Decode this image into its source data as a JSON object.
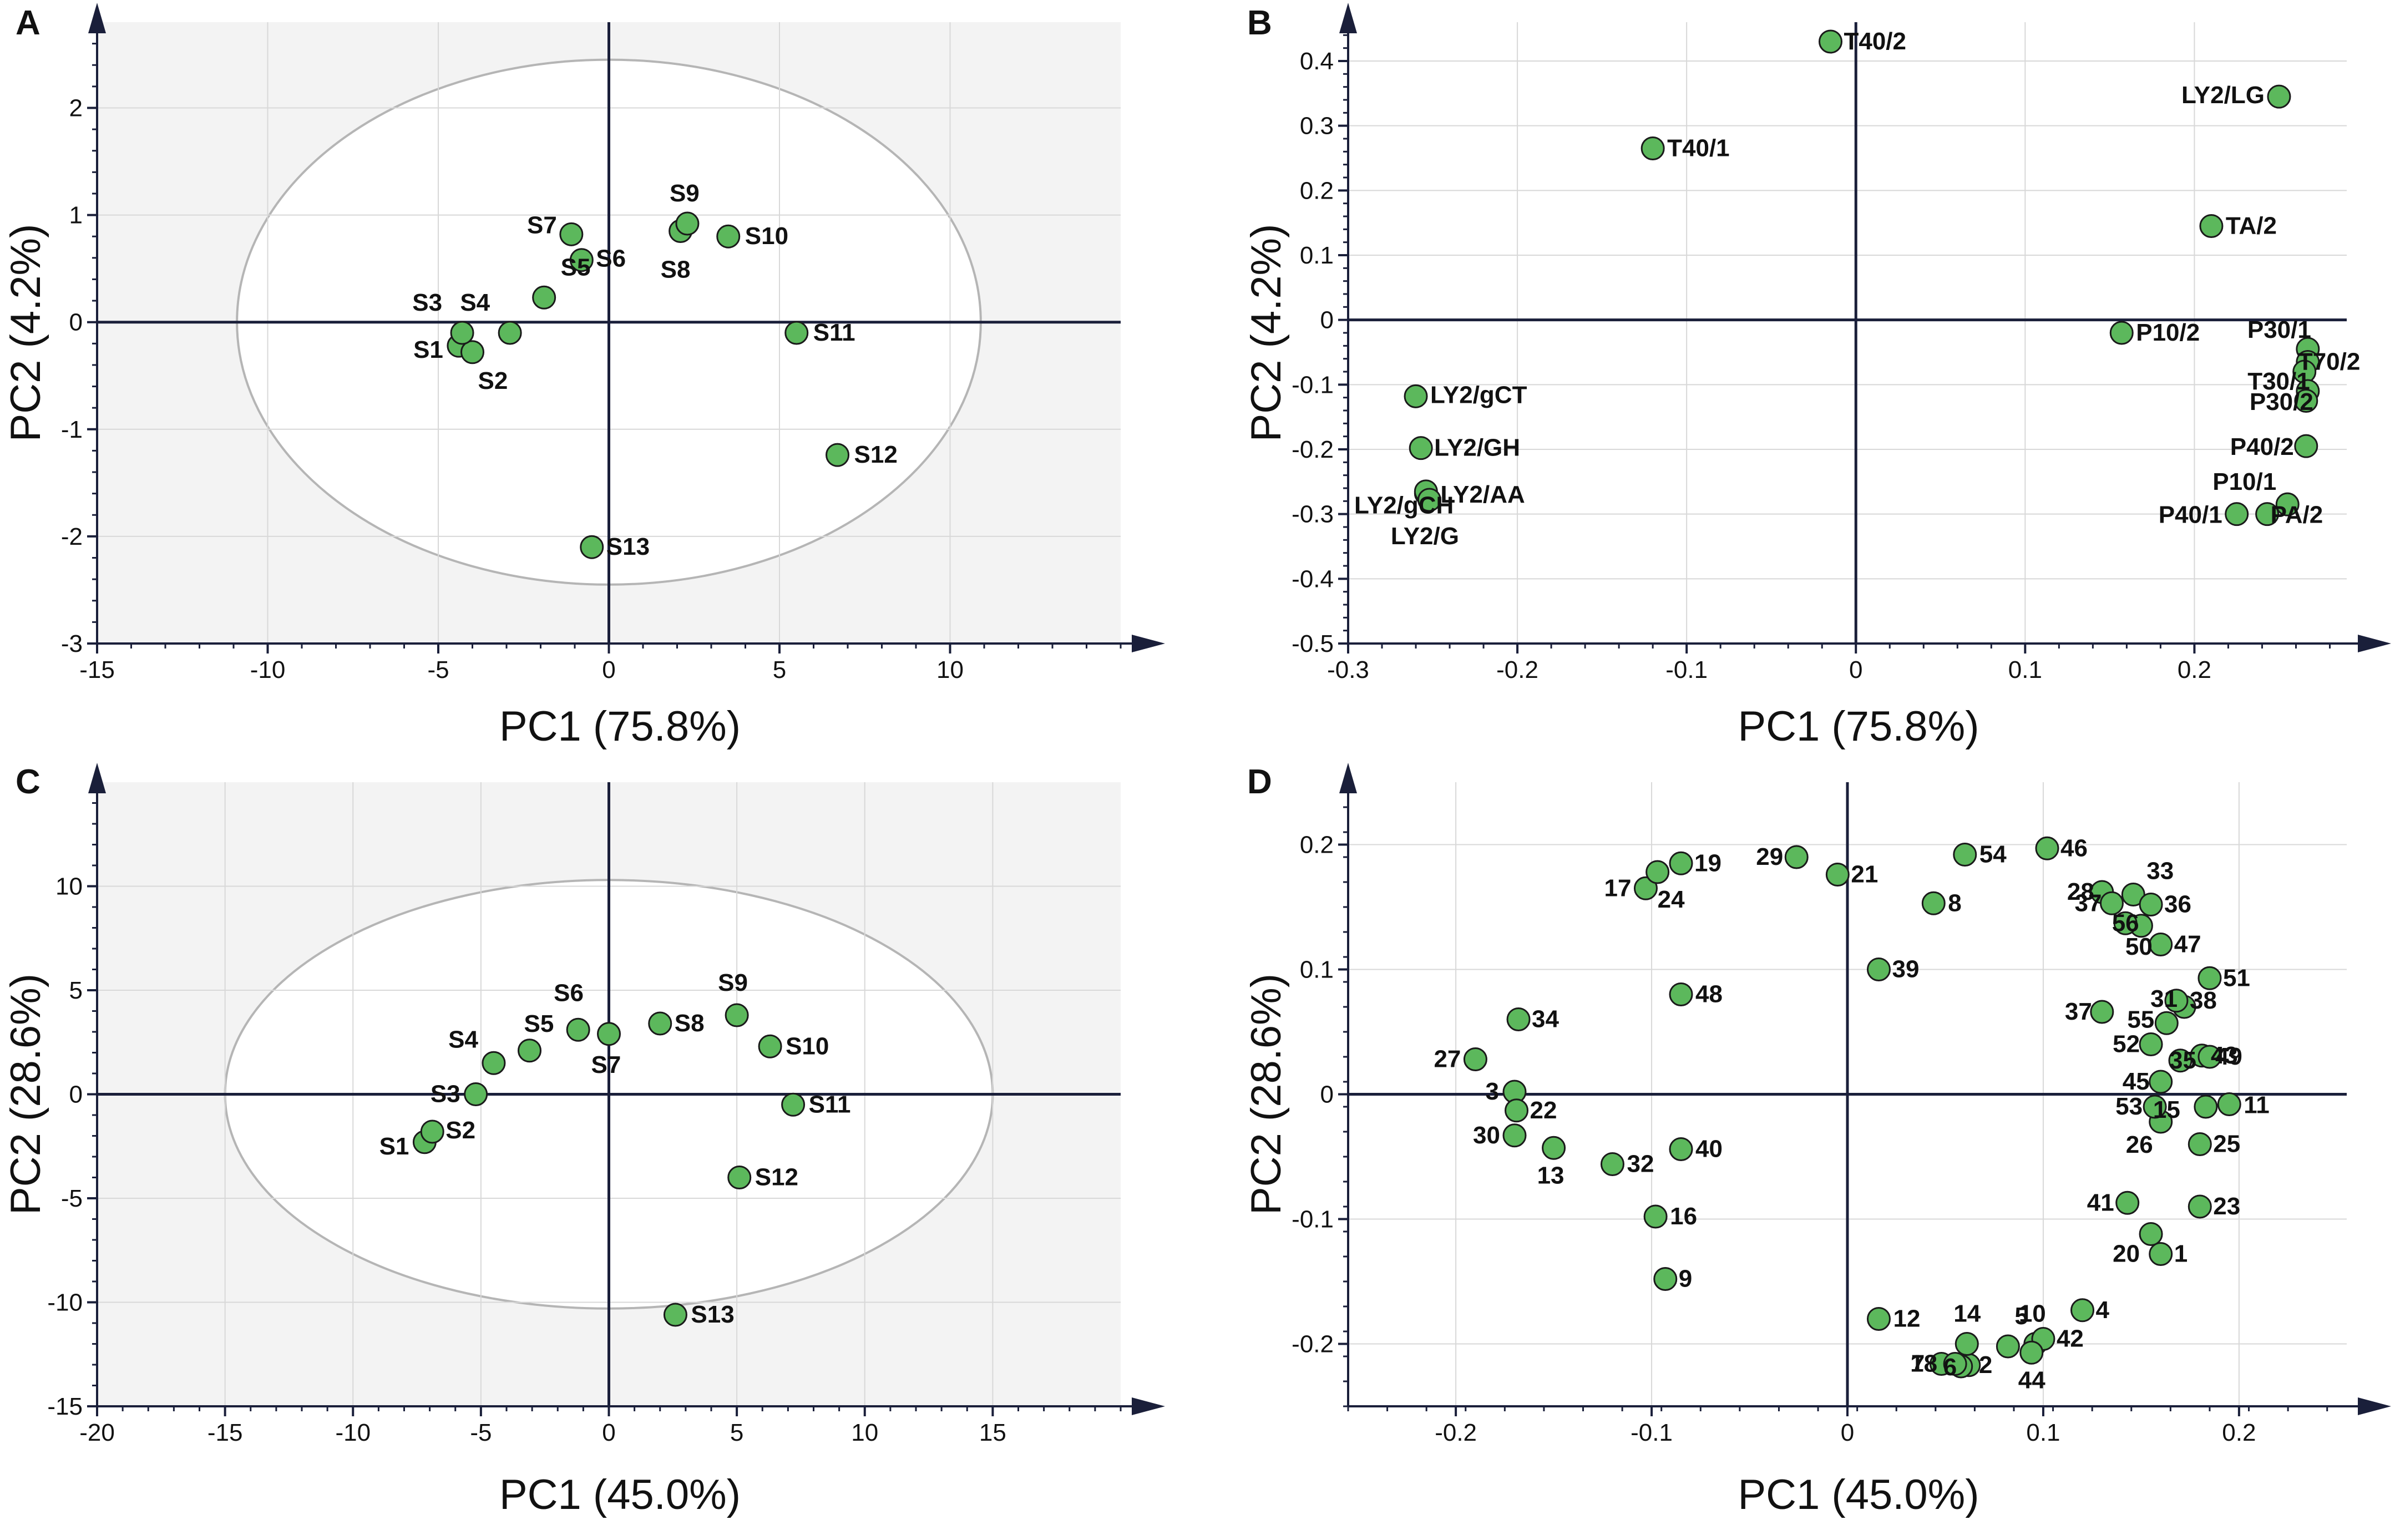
{
  "figure": {
    "panels": [
      "A",
      "B",
      "C",
      "D"
    ]
  },
  "chart_data": [
    {
      "panel": "A",
      "type": "scatter",
      "title": "",
      "xlabel": "PC1 (75.8%)",
      "ylabel": "PC2 (4.2%)",
      "xlim": [
        -15,
        15
      ],
      "ylim": [
        -3,
        2.8
      ],
      "xticks": [
        -15,
        -10,
        -5,
        0,
        5,
        10
      ],
      "yticks": [
        -3,
        -2,
        -1,
        0,
        1,
        2
      ],
      "grid": true,
      "shaded_background": true,
      "ellipse": {
        "cx": 0,
        "cy": 0,
        "rx": 10.9,
        "ry": 2.45
      },
      "points": [
        {
          "label": "S1",
          "x": -4.4,
          "y": -0.22
        },
        {
          "label": "S2",
          "x": -4.0,
          "y": -0.28
        },
        {
          "label": "S3",
          "x": -4.3,
          "y": -0.1
        },
        {
          "label": "S4",
          "x": -2.9,
          "y": -0.1
        },
        {
          "label": "S5",
          "x": -1.9,
          "y": 0.23
        },
        {
          "label": "S6",
          "x": -0.8,
          "y": 0.58
        },
        {
          "label": "S7",
          "x": -1.1,
          "y": 0.82
        },
        {
          "label": "S8",
          "x": 2.1,
          "y": 0.85
        },
        {
          "label": "S9",
          "x": 2.3,
          "y": 0.92
        },
        {
          "label": "S10",
          "x": 3.5,
          "y": 0.8
        },
        {
          "label": "S11",
          "x": 5.5,
          "y": -0.1
        },
        {
          "label": "S12",
          "x": 6.7,
          "y": -1.24
        },
        {
          "label": "S13",
          "x": -0.5,
          "y": -2.1
        }
      ]
    },
    {
      "panel": "B",
      "type": "scatter",
      "title": "",
      "xlabel": "PC1 (75.8%)",
      "ylabel": "PC2 (4.2%)",
      "xlim": [
        -0.3,
        0.29
      ],
      "ylim": [
        -0.5,
        0.46
      ],
      "xticks": [
        -0.3,
        -0.2,
        -0.1,
        0,
        0.1,
        0.2
      ],
      "yticks": [
        -0.5,
        -0.4,
        -0.3,
        -0.2,
        -0.1,
        0,
        0.1,
        0.2,
        0.3,
        0.4
      ],
      "grid": true,
      "shaded_background": false,
      "points": [
        {
          "label": "T40/2",
          "x": -0.015,
          "y": 0.43
        },
        {
          "label": "T40/1",
          "x": -0.12,
          "y": 0.265
        },
        {
          "label": "LY2/LG",
          "x": 0.25,
          "y": 0.345
        },
        {
          "label": "TA/2",
          "x": 0.21,
          "y": 0.145
        },
        {
          "label": "P10/2",
          "x": 0.157,
          "y": -0.02
        },
        {
          "label": "P30/1",
          "x": 0.267,
          "y": -0.045
        },
        {
          "label": "T70/2",
          "x": 0.267,
          "y": -0.065
        },
        {
          "label": "T30/1",
          "x": 0.265,
          "y": -0.08
        },
        {
          "label": "P30/2",
          "x": 0.267,
          "y": -0.11
        },
        {
          "label": "",
          "x": 0.266,
          "y": -0.125
        },
        {
          "label": "P40/2",
          "x": 0.266,
          "y": -0.195
        },
        {
          "label": "P10/1",
          "x": 0.255,
          "y": -0.285
        },
        {
          "label": "P40/1",
          "x": 0.225,
          "y": -0.3
        },
        {
          "label": "PA/2",
          "x": 0.243,
          "y": -0.3
        },
        {
          "label": "LY2/gCT",
          "x": -0.26,
          "y": -0.118
        },
        {
          "label": "LY2/GH",
          "x": -0.257,
          "y": -0.198
        },
        {
          "label": "LY2/gCH",
          "x": -0.254,
          "y": -0.268
        },
        {
          "label": "LY2/AA",
          "x": -0.254,
          "y": -0.265
        },
        {
          "label": "LY2/G",
          "x": -0.252,
          "y": -0.278
        }
      ]
    },
    {
      "panel": "C",
      "type": "scatter",
      "title": "",
      "xlabel": "PC1 (45.0%)",
      "ylabel": "PC2 (28.6%)",
      "xlim": [
        -20,
        20
      ],
      "ylim": [
        -15,
        15
      ],
      "xticks": [
        -20,
        -15,
        -10,
        -5,
        0,
        5,
        10,
        15
      ],
      "yticks": [
        -15,
        -10,
        -5,
        0,
        5,
        10
      ],
      "grid": true,
      "shaded_background": true,
      "ellipse": {
        "cx": 0,
        "cy": 0,
        "rx": 15,
        "ry": 10.3
      },
      "points": [
        {
          "label": "S1",
          "x": -7.2,
          "y": -2.3
        },
        {
          "label": "S2",
          "x": -6.9,
          "y": -1.8
        },
        {
          "label": "S3",
          "x": -5.2,
          "y": 0.0
        },
        {
          "label": "S4",
          "x": -4.5,
          "y": 1.5
        },
        {
          "label": "S5",
          "x": -3.1,
          "y": 2.1
        },
        {
          "label": "S6",
          "x": -1.2,
          "y": 3.1
        },
        {
          "label": "S7",
          "x": 0.0,
          "y": 2.9
        },
        {
          "label": "S8",
          "x": 2.0,
          "y": 3.4
        },
        {
          "label": "S9",
          "x": 5.0,
          "y": 3.8
        },
        {
          "label": "S10",
          "x": 6.3,
          "y": 2.3
        },
        {
          "label": "S11",
          "x": 7.2,
          "y": -0.5
        },
        {
          "label": "S12",
          "x": 5.1,
          "y": -4.0
        },
        {
          "label": "S13",
          "x": 2.6,
          "y": -10.6
        }
      ]
    },
    {
      "panel": "D",
      "type": "scatter",
      "title": "",
      "xlabel": "PC1 (45.0%)",
      "ylabel": "PC2 (28.6%)",
      "xlim": [
        -0.255,
        0.255
      ],
      "ylim": [
        -0.25,
        0.25
      ],
      "xticks": [
        -0.2,
        -0.1,
        0,
        0.1,
        0.2
      ],
      "yticks": [
        -0.2,
        -0.1,
        0,
        0.1,
        0.2
      ],
      "grid": true,
      "shaded_background": false,
      "points": [
        {
          "label": "1",
          "x": 0.16,
          "y": -0.128
        },
        {
          "label": "2",
          "x": 0.062,
          "y": -0.217
        },
        {
          "label": "3",
          "x": -0.17,
          "y": 0.002
        },
        {
          "label": "4",
          "x": 0.12,
          "y": -0.173
        },
        {
          "label": "5",
          "x": 0.082,
          "y": -0.202
        },
        {
          "label": "6",
          "x": 0.058,
          "y": -0.218
        },
        {
          "label": "7",
          "x": 0.048,
          "y": -0.216
        },
        {
          "label": "8",
          "x": 0.044,
          "y": 0.153
        },
        {
          "label": "9",
          "x": -0.093,
          "y": -0.148
        },
        {
          "label": "10",
          "x": 0.096,
          "y": -0.2
        },
        {
          "label": "11",
          "x": 0.195,
          "y": -0.008
        },
        {
          "label": "12",
          "x": 0.016,
          "y": -0.18
        },
        {
          "label": "13",
          "x": -0.15,
          "y": -0.043
        },
        {
          "label": "14",
          "x": 0.061,
          "y": -0.2
        },
        {
          "label": "15",
          "x": 0.183,
          "y": -0.01
        },
        {
          "label": "16",
          "x": -0.098,
          "y": -0.098
        },
        {
          "label": "17",
          "x": -0.103,
          "y": 0.165
        },
        {
          "label": "18",
          "x": 0.055,
          "y": -0.216
        },
        {
          "label": "19",
          "x": -0.085,
          "y": 0.185
        },
        {
          "label": "20",
          "x": 0.155,
          "y": -0.112
        },
        {
          "label": "21",
          "x": -0.005,
          "y": 0.176
        },
        {
          "label": "22",
          "x": -0.169,
          "y": -0.013
        },
        {
          "label": "23",
          "x": 0.18,
          "y": -0.09
        },
        {
          "label": "24",
          "x": -0.097,
          "y": 0.178
        },
        {
          "label": "25",
          "x": 0.18,
          "y": -0.04
        },
        {
          "label": "26",
          "x": 0.16,
          "y": -0.022
        },
        {
          "label": "27",
          "x": -0.19,
          "y": 0.028
        },
        {
          "label": "28",
          "x": 0.13,
          "y": 0.162
        },
        {
          "label": "29",
          "x": -0.026,
          "y": 0.19
        },
        {
          "label": "30",
          "x": -0.17,
          "y": -0.033
        },
        {
          "label": "31",
          "x": 0.172,
          "y": 0.07
        },
        {
          "label": "32",
          "x": -0.12,
          "y": -0.056
        },
        {
          "label": "33",
          "x": 0.146,
          "y": 0.16
        },
        {
          "label": "34",
          "x": -0.168,
          "y": 0.06
        },
        {
          "label": "35",
          "x": 0.17,
          "y": 0.027
        },
        {
          "label": "36",
          "x": 0.155,
          "y": 0.152
        },
        {
          "label": "37",
          "x": 0.135,
          "y": 0.153
        },
        {
          "label": "37",
          "x": 0.13,
          "y": 0.066
        },
        {
          "label": "38",
          "x": 0.168,
          "y": 0.075
        },
        {
          "label": "39",
          "x": 0.016,
          "y": 0.1
        },
        {
          "label": "40",
          "x": -0.085,
          "y": -0.044
        },
        {
          "label": "41",
          "x": 0.143,
          "y": -0.087
        },
        {
          "label": "42",
          "x": 0.1,
          "y": -0.196
        },
        {
          "label": "43",
          "x": 0.181,
          "y": 0.031
        },
        {
          "label": "44",
          "x": 0.094,
          "y": -0.207
        },
        {
          "label": "45",
          "x": 0.16,
          "y": 0.01
        },
        {
          "label": "46",
          "x": 0.102,
          "y": 0.197
        },
        {
          "label": "47",
          "x": 0.16,
          "y": 0.12
        },
        {
          "label": "48",
          "x": -0.085,
          "y": 0.08
        },
        {
          "label": "49",
          "x": 0.185,
          "y": 0.03
        },
        {
          "label": "50",
          "x": 0.15,
          "y": 0.135
        },
        {
          "label": "51",
          "x": 0.185,
          "y": 0.093
        },
        {
          "label": "52",
          "x": 0.155,
          "y": 0.04
        },
        {
          "label": "53",
          "x": 0.157,
          "y": -0.01
        },
        {
          "label": "54",
          "x": 0.06,
          "y": 0.192
        },
        {
          "label": "55",
          "x": 0.163,
          "y": 0.057
        },
        {
          "label": "56",
          "x": 0.142,
          "y": 0.137
        }
      ]
    }
  ]
}
